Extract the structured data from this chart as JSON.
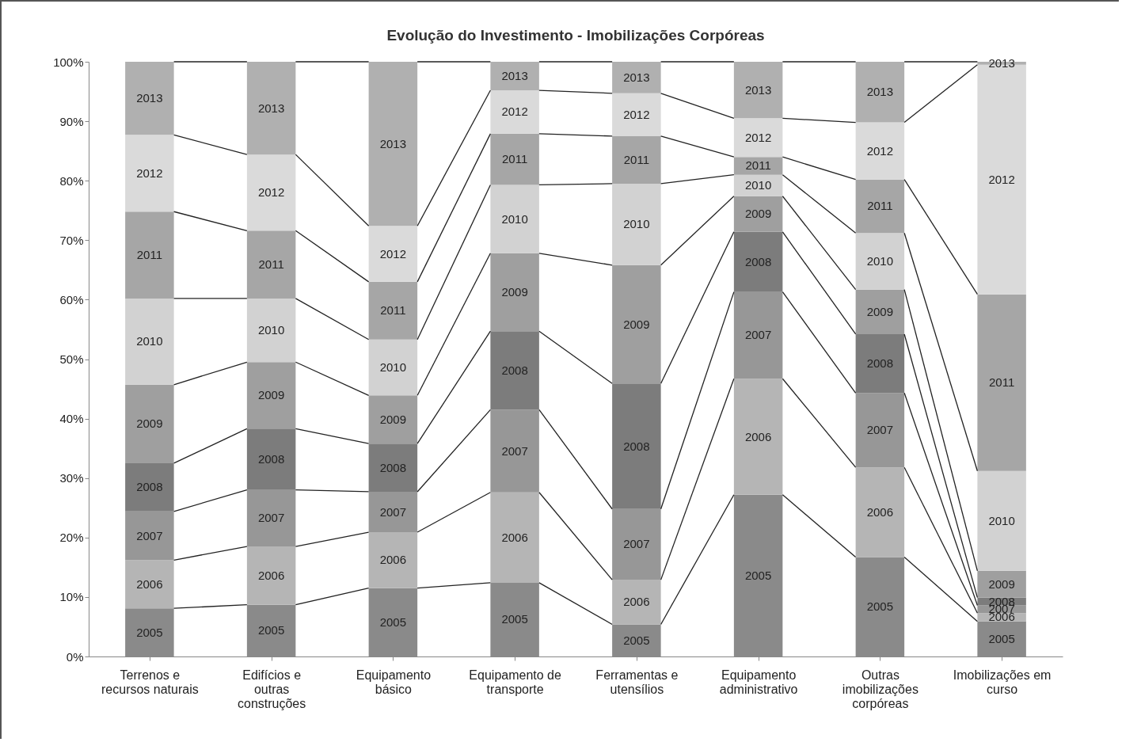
{
  "chart_data": {
    "type": "bar",
    "stacked": true,
    "title": "Evolução do Investimento - Imobilizações Corpóreas",
    "categories": [
      "Terrenos e recursos naturais",
      "Edifícios e outras construções",
      "Equipamento básico",
      "Equipamento de transporte",
      "Ferramentas e utensílios",
      "Equipamento administrativo",
      "Outras imobilizações corpóreas",
      "Imobilizações em curso"
    ],
    "ylim": [
      0,
      100
    ],
    "yticks": [
      {
        "value": 0,
        "label": "0%"
      },
      {
        "value": 10,
        "label": "10%"
      },
      {
        "value": 20,
        "label": "20%"
      },
      {
        "value": 30,
        "label": "30%"
      },
      {
        "value": 40,
        "label": "40%"
      },
      {
        "value": 50,
        "label": "50%"
      },
      {
        "value": 60,
        "label": "60%"
      },
      {
        "value": 70,
        "label": "70%"
      },
      {
        "value": 80,
        "label": "80%"
      },
      {
        "value": 90,
        "label": "90%"
      },
      {
        "value": 100,
        "label": "100%"
      }
    ],
    "series": [
      {
        "name": "2005",
        "color": "#8a8a8a",
        "values": [
          8.1,
          8.7,
          11.5,
          12.4,
          5.4,
          27.2,
          16.7,
          5.9
        ]
      },
      {
        "name": "2006",
        "color": "#b5b5b5",
        "values": [
          8.1,
          9.8,
          9.4,
          15.2,
          7.5,
          19.5,
          15.1,
          1.4
        ]
      },
      {
        "name": "2007",
        "color": "#979797",
        "values": [
          8.2,
          9.5,
          6.8,
          13.9,
          11.9,
          14.6,
          12.5,
          1.3
        ]
      },
      {
        "name": "2008",
        "color": "#7c7c7c",
        "values": [
          8.1,
          10.3,
          8.1,
          13.2,
          21.1,
          10.1,
          9.9,
          1.3
        ]
      },
      {
        "name": "2009",
        "color": "#9f9f9f",
        "values": [
          13.2,
          11.2,
          8.1,
          13.1,
          19.9,
          6.0,
          7.5,
          4.5
        ]
      },
      {
        "name": "2010",
        "color": "#d2d2d2",
        "values": [
          14.5,
          10.7,
          9.4,
          11.5,
          13.7,
          3.6,
          9.5,
          16.8
        ]
      },
      {
        "name": "2011",
        "color": "#a6a6a6",
        "values": [
          14.6,
          11.4,
          9.7,
          8.6,
          8.0,
          3.0,
          9.0,
          29.7
        ]
      },
      {
        "name": "2012",
        "color": "#dadada",
        "values": [
          12.9,
          12.8,
          9.4,
          7.3,
          7.2,
          6.5,
          9.6,
          38.6
        ]
      },
      {
        "name": "2013",
        "color": "#b0b0b0",
        "values": [
          12.3,
          15.6,
          27.6,
          4.8,
          5.3,
          9.5,
          10.2,
          0.5
        ]
      }
    ]
  }
}
